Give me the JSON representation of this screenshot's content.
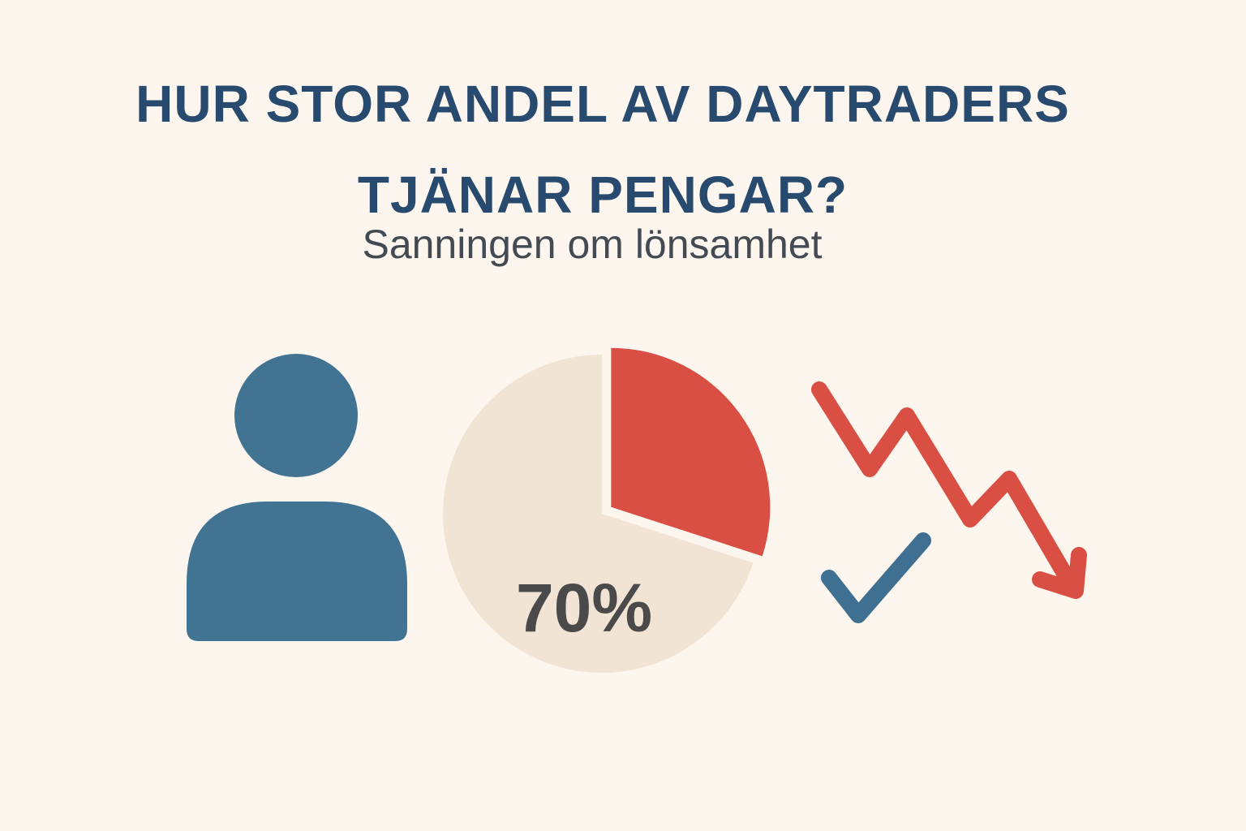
{
  "chart_data": {
    "type": "pie",
    "title": "HUR STOR ANDEL AV DAYTRADERS TJÄNAR PENGAR?",
    "subtitle": "Sanningen om lönsamhet",
    "values": [
      30,
      70
    ],
    "value_labels": [
      null,
      "70%"
    ],
    "colors": [
      "#d94f43",
      "#f1e4d4"
    ]
  }
}
